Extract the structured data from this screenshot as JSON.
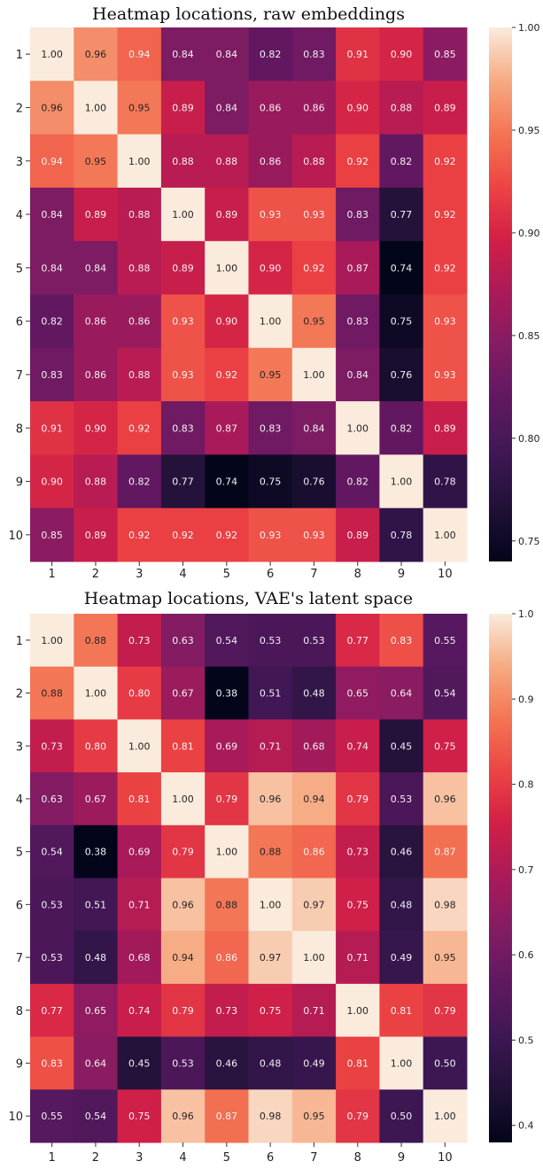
{
  "chart_data": [
    {
      "type": "heatmap",
      "title": "Heatmap locations, raw embeddings",
      "xlabel": "",
      "ylabel": "",
      "x_categories": [
        "1",
        "2",
        "3",
        "4",
        "5",
        "6",
        "7",
        "8",
        "9",
        "10"
      ],
      "y_categories": [
        "1",
        "2",
        "3",
        "4",
        "5",
        "6",
        "7",
        "8",
        "9",
        "10"
      ],
      "values": [
        [
          1.0,
          0.96,
          0.94,
          0.84,
          0.84,
          0.82,
          0.83,
          0.91,
          0.9,
          0.85
        ],
        [
          0.96,
          1.0,
          0.95,
          0.89,
          0.84,
          0.86,
          0.86,
          0.9,
          0.88,
          0.89
        ],
        [
          0.94,
          0.95,
          1.0,
          0.88,
          0.88,
          0.86,
          0.88,
          0.92,
          0.82,
          0.92
        ],
        [
          0.84,
          0.89,
          0.88,
          1.0,
          0.89,
          0.93,
          0.93,
          0.83,
          0.77,
          0.92
        ],
        [
          0.84,
          0.84,
          0.88,
          0.89,
          1.0,
          0.9,
          0.92,
          0.87,
          0.74,
          0.92
        ],
        [
          0.82,
          0.86,
          0.86,
          0.93,
          0.9,
          1.0,
          0.95,
          0.83,
          0.75,
          0.93
        ],
        [
          0.83,
          0.86,
          0.88,
          0.93,
          0.92,
          0.95,
          1.0,
          0.84,
          0.76,
          0.93
        ],
        [
          0.91,
          0.9,
          0.92,
          0.83,
          0.87,
          0.83,
          0.84,
          1.0,
          0.82,
          0.89
        ],
        [
          0.9,
          0.88,
          0.82,
          0.77,
          0.74,
          0.75,
          0.76,
          0.82,
          1.0,
          0.78
        ],
        [
          0.85,
          0.89,
          0.92,
          0.92,
          0.92,
          0.93,
          0.93,
          0.89,
          0.78,
          1.0
        ]
      ],
      "colorbar_range": [
        0.74,
        1.0
      ],
      "colorbar_ticks": [
        1.0,
        0.95,
        0.9,
        0.85,
        0.8,
        0.75
      ],
      "colorbar_tick_labels": [
        "1.00",
        "0.95",
        "0.90",
        "0.85",
        "0.80",
        "0.75"
      ],
      "value_format": "0.00",
      "colormap": "rocket"
    },
    {
      "type": "heatmap",
      "title": "Heatmap locations, VAE's latent space",
      "xlabel": "",
      "ylabel": "",
      "x_categories": [
        "1",
        "2",
        "3",
        "4",
        "5",
        "6",
        "7",
        "8",
        "9",
        "10"
      ],
      "y_categories": [
        "1",
        "2",
        "3",
        "4",
        "5",
        "6",
        "7",
        "8",
        "9",
        "10"
      ],
      "values": [
        [
          1.0,
          0.88,
          0.73,
          0.63,
          0.54,
          0.53,
          0.53,
          0.77,
          0.83,
          0.55
        ],
        [
          0.88,
          1.0,
          0.8,
          0.67,
          0.38,
          0.51,
          0.48,
          0.65,
          0.64,
          0.54
        ],
        [
          0.73,
          0.8,
          1.0,
          0.81,
          0.69,
          0.71,
          0.68,
          0.74,
          0.45,
          0.75
        ],
        [
          0.63,
          0.67,
          0.81,
          1.0,
          0.79,
          0.96,
          0.94,
          0.79,
          0.53,
          0.96
        ],
        [
          0.54,
          0.38,
          0.69,
          0.79,
          1.0,
          0.88,
          0.86,
          0.73,
          0.46,
          0.87
        ],
        [
          0.53,
          0.51,
          0.71,
          0.96,
          0.88,
          1.0,
          0.97,
          0.75,
          0.48,
          0.98
        ],
        [
          0.53,
          0.48,
          0.68,
          0.94,
          0.86,
          0.97,
          1.0,
          0.71,
          0.49,
          0.95
        ],
        [
          0.77,
          0.65,
          0.74,
          0.79,
          0.73,
          0.75,
          0.71,
          1.0,
          0.81,
          0.79
        ],
        [
          0.83,
          0.64,
          0.45,
          0.53,
          0.46,
          0.48,
          0.49,
          0.81,
          1.0,
          0.5
        ],
        [
          0.55,
          0.54,
          0.75,
          0.96,
          0.87,
          0.98,
          0.95,
          0.79,
          0.5,
          1.0
        ]
      ],
      "colorbar_range": [
        0.38,
        1.0
      ],
      "colorbar_ticks": [
        1.0,
        0.9,
        0.8,
        0.7,
        0.6,
        0.5,
        0.4
      ],
      "colorbar_tick_labels": [
        "1.0",
        "0.9",
        "0.8",
        "0.7",
        "0.6",
        "0.5",
        "0.4"
      ],
      "value_format": "0.00",
      "colormap": "rocket"
    }
  ]
}
